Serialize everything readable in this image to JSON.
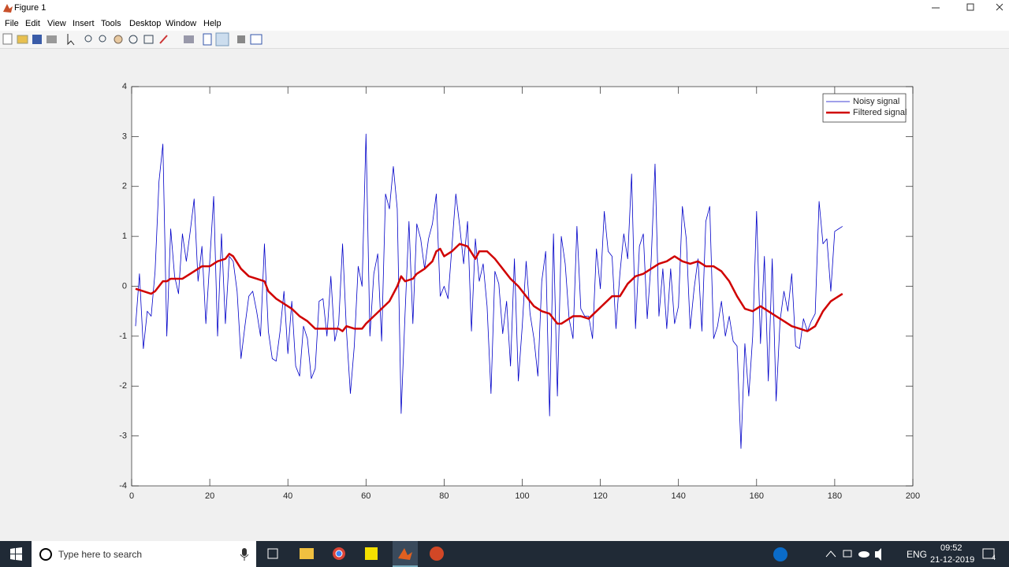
{
  "window": {
    "title": "Figure 1",
    "menu": [
      "File",
      "Edit",
      "View",
      "Insert",
      "Tools",
      "Desktop",
      "Window",
      "Help"
    ]
  },
  "chart_data": {
    "type": "line",
    "xlim": [
      0,
      200
    ],
    "xticks": [
      0,
      20,
      40,
      60,
      80,
      100,
      120,
      140,
      160,
      180,
      200
    ],
    "ylim": [
      -4,
      4
    ],
    "yticks": [
      -4,
      -3,
      -2,
      -1,
      0,
      1,
      2,
      3,
      4
    ],
    "legend": "northeast",
    "grid": false,
    "series": [
      {
        "name": "Noisy signal",
        "color": "#0000c8",
        "width": 0.8,
        "x": [
          1,
          2,
          3,
          4,
          5,
          6,
          7,
          8,
          9,
          10,
          11,
          12,
          13,
          14,
          15,
          16,
          17,
          18,
          19,
          20,
          21,
          22,
          23,
          24,
          25,
          26,
          27,
          28,
          29,
          30,
          31,
          32,
          33,
          34,
          35,
          36,
          37,
          38,
          39,
          40,
          41,
          42,
          43,
          44,
          45,
          46,
          47,
          48,
          49,
          50,
          51,
          52,
          53,
          54,
          55,
          56,
          57,
          58,
          59,
          60,
          61,
          62,
          63,
          64,
          65,
          66,
          67,
          68,
          69,
          70,
          71,
          72,
          73,
          74,
          75,
          76,
          77,
          78,
          79,
          80,
          81,
          82,
          83,
          84,
          85,
          86,
          87,
          88,
          89,
          90,
          91,
          92,
          93,
          94,
          95,
          96,
          97,
          98,
          99,
          100,
          101,
          102,
          103,
          104,
          105,
          106,
          107,
          108,
          109,
          110,
          111,
          112,
          113,
          114,
          115,
          116,
          117,
          118,
          119,
          120,
          121,
          122,
          123,
          124,
          125,
          126,
          127,
          128,
          129,
          130,
          131,
          132,
          133,
          134,
          135,
          136,
          137,
          138,
          139,
          140,
          141,
          142,
          143,
          144,
          145,
          146,
          147,
          148,
          149,
          150,
          151,
          152,
          153,
          154,
          155,
          156,
          157,
          158,
          159,
          160,
          161,
          162,
          163,
          164,
          165,
          166,
          167,
          168,
          169,
          170,
          171,
          172,
          173,
          174,
          175,
          176,
          177,
          178,
          179,
          180,
          181,
          182
        ],
        "values": [
          -0.8,
          0.25,
          -1.25,
          -0.5,
          -0.6,
          0.3,
          2.1,
          2.85,
          -1.0,
          1.15,
          0.2,
          -0.15,
          1.05,
          0.5,
          1.1,
          1.75,
          0.1,
          0.8,
          -0.75,
          0.5,
          1.8,
          -1.0,
          1.05,
          -0.75,
          0.6,
          0.5,
          -0.1,
          -1.45,
          -0.8,
          -0.2,
          -0.1,
          -0.5,
          -1.0,
          0.85,
          -0.9,
          -1.45,
          -1.5,
          -0.9,
          -0.1,
          -1.35,
          -0.3,
          -1.6,
          -1.8,
          -0.8,
          -1.05,
          -1.85,
          -1.65,
          -0.3,
          -0.25,
          -1.0,
          0.2,
          -1.1,
          -0.75,
          0.85,
          -0.9,
          -2.15,
          -1.2,
          0.4,
          0.0,
          3.05,
          -1.0,
          0.25,
          0.65,
          -1.1,
          1.85,
          1.55,
          2.4,
          1.55,
          -2.55,
          -0.55,
          1.3,
          -0.75,
          1.25,
          0.95,
          0.35,
          0.95,
          1.25,
          1.85,
          -0.2,
          0.0,
          -0.25,
          0.8,
          1.85,
          1.2,
          0.45,
          1.3,
          -0.9,
          0.95,
          0.1,
          0.45,
          -0.4,
          -2.15,
          0.3,
          0.05,
          -0.95,
          -0.3,
          -1.6,
          0.55,
          -1.9,
          -0.8,
          0.5,
          -0.55,
          -1.05,
          -1.8,
          0.1,
          0.7,
          -2.6,
          1.05,
          -2.2,
          1.0,
          0.45,
          -0.65,
          -1.05,
          1.2,
          -0.45,
          -0.6,
          -0.6,
          -1.05,
          0.75,
          -0.05,
          1.5,
          0.7,
          0.6,
          -0.85,
          0.25,
          1.05,
          0.55,
          2.25,
          -0.85,
          0.8,
          1.05,
          -0.65,
          0.5,
          2.45,
          -0.6,
          0.35,
          -0.85,
          0.35,
          -0.75,
          -0.4,
          1.6,
          0.95,
          -0.85,
          -0.05,
          0.55,
          -0.9,
          1.3,
          1.6,
          -1.05,
          -0.8,
          -0.3,
          -1.0,
          -0.6,
          -1.1,
          -1.2,
          -3.25,
          -1.15,
          -2.2,
          -1.0,
          1.5,
          -1.15,
          0.6,
          -1.9,
          0.55,
          -2.3,
          -0.7,
          -0.1,
          -0.5,
          0.25,
          -1.2,
          -1.25,
          -0.65,
          -0.9,
          -0.7,
          -0.55,
          1.7,
          0.85,
          0.95,
          -0.1,
          1.1,
          1.15,
          1.2
        ]
      },
      {
        "name": "Filtered signal",
        "color": "#d00000",
        "width": 2.5,
        "x": [
          1,
          3,
          5,
          6,
          8,
          9,
          10,
          13,
          15,
          17,
          18,
          20,
          22,
          24,
          25,
          26,
          28,
          30,
          32,
          34,
          35,
          37,
          39,
          41,
          43,
          45,
          47,
          49,
          51,
          53,
          54,
          55,
          57,
          59,
          60,
          62,
          64,
          66,
          68,
          69,
          70,
          72,
          73,
          75,
          77,
          78,
          79,
          80,
          82,
          84,
          86,
          88,
          89,
          91,
          93,
          95,
          97,
          99,
          101,
          103,
          105,
          107,
          109,
          110,
          112,
          113,
          115,
          117,
          119,
          121,
          123,
          125,
          127,
          129,
          131,
          133,
          135,
          137,
          139,
          141,
          143,
          145,
          147,
          149,
          151,
          153,
          155,
          157,
          159,
          161,
          163,
          165,
          167,
          169,
          171,
          173,
          175,
          177,
          179,
          181,
          182
        ],
        "values": [
          -0.05,
          -0.1,
          -0.15,
          -0.1,
          0.1,
          0.1,
          0.15,
          0.15,
          0.25,
          0.35,
          0.4,
          0.4,
          0.5,
          0.55,
          0.65,
          0.6,
          0.35,
          0.2,
          0.15,
          0.1,
          -0.1,
          -0.25,
          -0.35,
          -0.45,
          -0.6,
          -0.7,
          -0.85,
          -0.85,
          -0.85,
          -0.85,
          -0.9,
          -0.8,
          -0.85,
          -0.85,
          -0.75,
          -0.6,
          -0.45,
          -0.3,
          0,
          0.2,
          0.1,
          0.15,
          0.25,
          0.35,
          0.5,
          0.7,
          0.75,
          0.6,
          0.7,
          0.85,
          0.8,
          0.55,
          0.7,
          0.7,
          0.55,
          0.35,
          0.15,
          0,
          -0.2,
          -0.4,
          -0.5,
          -0.55,
          -0.75,
          -0.75,
          -0.65,
          -0.6,
          -0.6,
          -0.65,
          -0.5,
          -0.35,
          -0.2,
          -0.2,
          0.05,
          0.2,
          0.25,
          0.35,
          0.45,
          0.5,
          0.6,
          0.5,
          0.45,
          0.5,
          0.4,
          0.4,
          0.3,
          0.1,
          -0.2,
          -0.45,
          -0.5,
          -0.4,
          -0.5,
          -0.6,
          -0.7,
          -0.8,
          -0.85,
          -0.9,
          -0.8,
          -0.5,
          -0.3,
          -0.2,
          -0.15
        ]
      }
    ]
  },
  "taskbar": {
    "search": "Type here to search",
    "language": "ENG",
    "time": "09:52",
    "date": "21-12-2019",
    "notifications": "4"
  }
}
